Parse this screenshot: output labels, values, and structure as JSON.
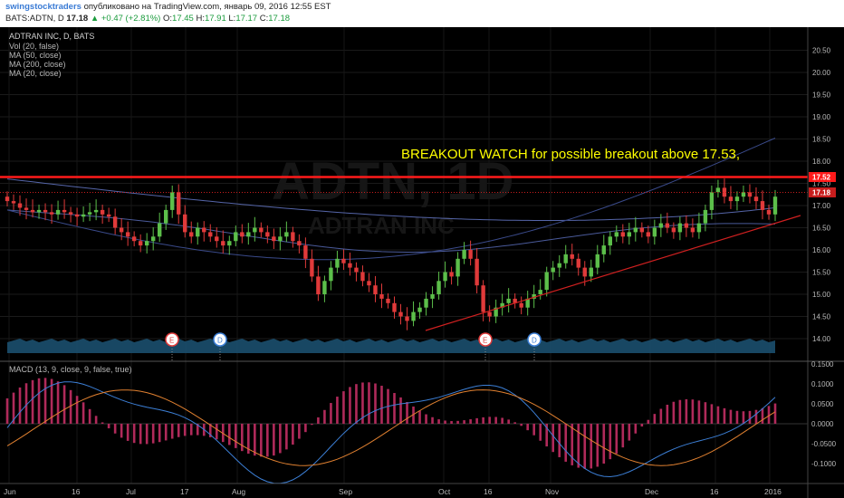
{
  "header": {
    "author": "swingstocktraders",
    "published": "опубликовано на TradingView.com, январь 09, 2016 12:55 EST",
    "symbol": "BATS:ADTN, D",
    "last": "17.18",
    "change": "+0.47 (+2.81%)",
    "o_label": "O:",
    "o": "17.45",
    "h_label": "H:",
    "h": "17.91",
    "l_label": "L:",
    "l": "17.17",
    "c_label": "C:",
    "c": "17.18"
  },
  "legend": {
    "title": "ADTRAN INC, D, BATS",
    "lines": [
      "Vol (20, false)",
      "MA (50, close)",
      "MA (200, close)",
      "MA (20, close)"
    ]
  },
  "watermark": {
    "ticker": "ADTN, 1D",
    "name": "ADTRAN INC"
  },
  "annotation": "BREAKOUT WATCH for possible breakout above 17.53,",
  "price_tags": {
    "resistance": "17.52",
    "last": "17.18"
  },
  "price_axis": [
    "20.50",
    "20.00",
    "19.50",
    "19.00",
    "18.50",
    "18.00",
    "17.50",
    "17.00",
    "16.50",
    "16.00",
    "15.50",
    "15.00",
    "14.50",
    "14.00"
  ],
  "macd_label": "MACD (13, 9, close, 9, false, true)",
  "macd_axis": [
    "0.1500",
    "0.1000",
    "0.0500",
    "0.0000",
    "-0.0500",
    "-0.1000"
  ],
  "x_axis": [
    "Jun",
    "16",
    "Jul",
    "17",
    "Aug",
    "Sep",
    "Oct",
    "16",
    "Nov",
    "Dec",
    "16",
    "2016"
  ],
  "events": [
    "E",
    "D",
    "E",
    "D"
  ],
  "colors": {
    "bg": "#000000",
    "up": "#5cbf4a",
    "down": "#e03a3a",
    "resistance": "#ff1a1a",
    "ma": "#4a5a9a",
    "trend": "#d02020",
    "macd": "#3c7fd6",
    "signal": "#e08030",
    "hist": "#b02a5a",
    "annotation": "#ffff00"
  },
  "chart_data": {
    "type": "candlestick",
    "symbol": "ADTN",
    "resistance_level": 17.52,
    "annotation_level": 17.53,
    "last_price": 17.18,
    "ylim": [
      13.7,
      20.7
    ],
    "macd_ylim": [
      -0.13,
      0.16
    ]
  }
}
